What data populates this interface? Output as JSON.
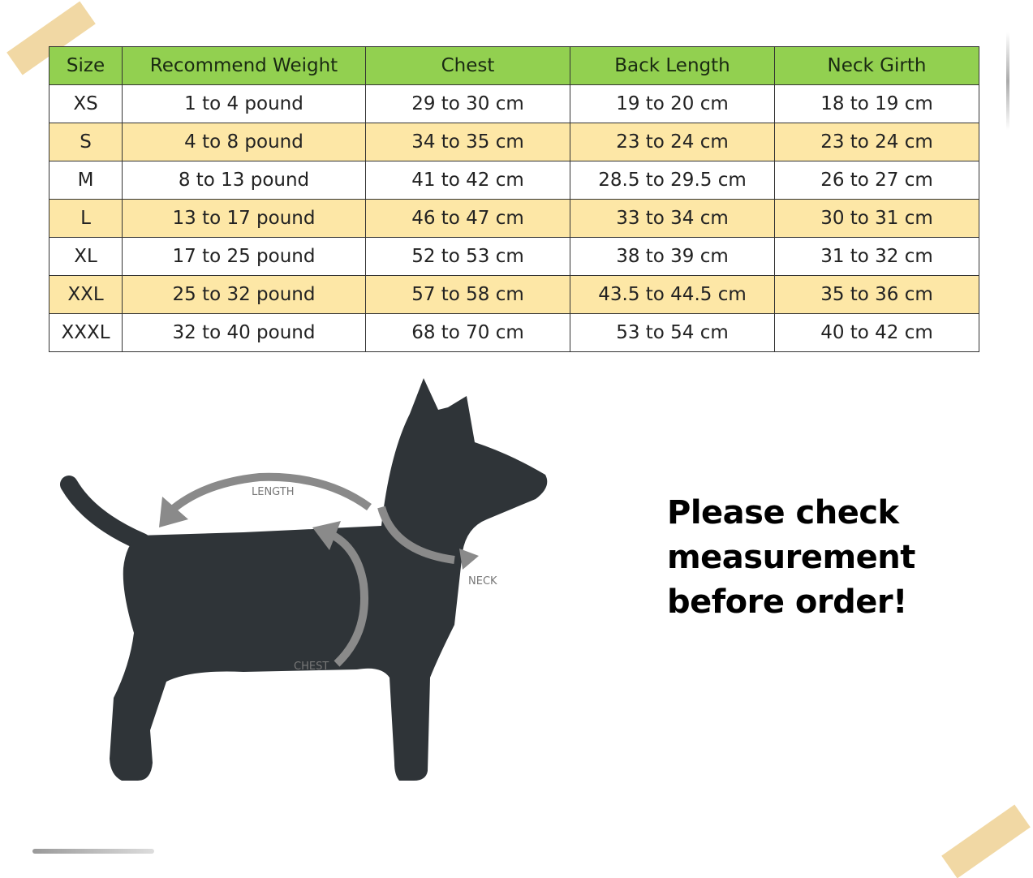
{
  "table": {
    "headers": [
      "Size",
      "Recommend Weight",
      "Chest",
      "Back Length",
      "Neck Girth"
    ],
    "rows": [
      [
        "XS",
        "1 to 4 pound",
        "29 to 30 cm",
        "19 to 20 cm",
        "18 to 19 cm"
      ],
      [
        "S",
        "4 to 8 pound",
        "34 to 35 cm",
        "23 to 24 cm",
        "23 to 24 cm"
      ],
      [
        "M",
        "8 to 13 pound",
        "41 to 42 cm",
        "28.5 to 29.5 cm",
        "26 to 27 cm"
      ],
      [
        "L",
        "13 to 17 pound",
        "46 to 47 cm",
        "33 to 34 cm",
        "30 to 31 cm"
      ],
      [
        "XL",
        "17 to 25 pound",
        "52 to 53 cm",
        "38 to 39 cm",
        "31 to 32 cm"
      ],
      [
        "XXL",
        "25 to 32 pound",
        "57 to 58 cm",
        "43.5 to 44.5 cm",
        "35 to 36 cm"
      ],
      [
        "XXXL",
        "32 to 40 pound",
        "68 to 70 cm",
        "53 to 54 cm",
        "40 to 42 cm"
      ]
    ],
    "colors": {
      "header": "#92d050",
      "alt_row": "#fde7a6"
    }
  },
  "diagram": {
    "length_label": "LENGTH",
    "neck_label": "NECK",
    "chest_label": "CHEST",
    "dog_color": "#2f3438"
  },
  "note": {
    "line1": "Please check",
    "line2": "measurement",
    "line3": "before order!"
  }
}
